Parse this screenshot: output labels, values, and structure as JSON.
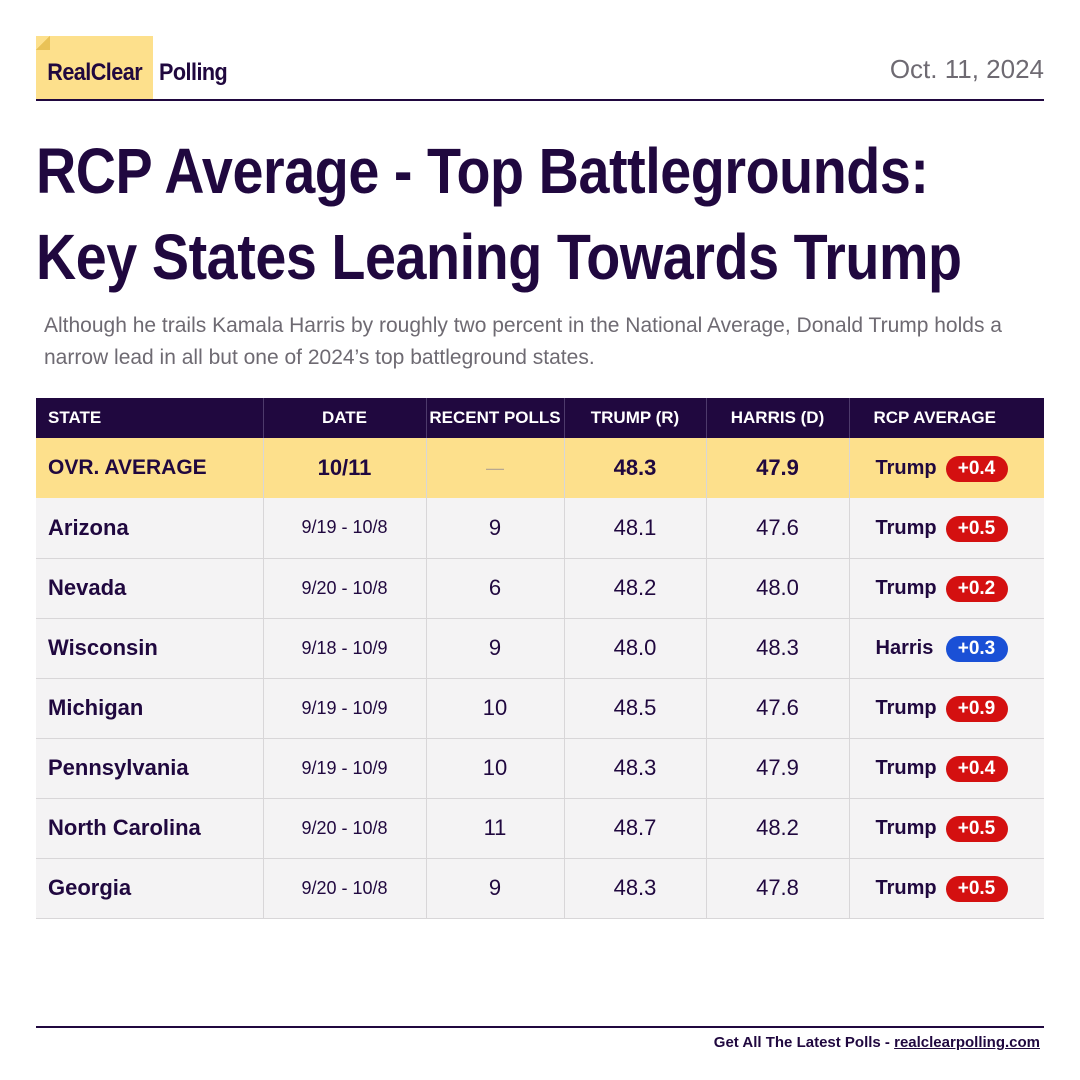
{
  "brand": {
    "real": "RealClear",
    "polling": "Polling",
    "accent": "#fde08c"
  },
  "date": "Oct. 11, 2024",
  "title": {
    "line1": "RCP Average - Top Battlegrounds:",
    "line2": "Key States Leaning Towards Trump"
  },
  "subtitle": "Although he trails Kamala Harris by roughly two percent in the National Average, Donald Trump holds a narrow lead in all but one of 2024’s top battleground states.",
  "table": {
    "headers": [
      "STATE",
      "DATE",
      "RECENT POLLS",
      "TRUMP (R)",
      "HARRIS (D)",
      "RCP AVERAGE"
    ],
    "overall": {
      "state": "OVR. AVERAGE",
      "date": "10/11",
      "polls": "—",
      "trump": "48.3",
      "harris": "47.9",
      "leader": "Trump",
      "spread": "+0.4"
    },
    "rows": [
      {
        "state": "Arizona",
        "date": "9/19 - 10/8",
        "polls": "9",
        "trump": "48.1",
        "harris": "47.6",
        "leader": "Trump",
        "spread": "+0.5",
        "party": "r"
      },
      {
        "state": "Nevada",
        "date": "9/20 - 10/8",
        "polls": "6",
        "trump": "48.2",
        "harris": "48.0",
        "leader": "Trump",
        "spread": "+0.2",
        "party": "r"
      },
      {
        "state": "Wisconsin",
        "date": "9/18 - 10/9",
        "polls": "9",
        "trump": "48.0",
        "harris": "48.3",
        "leader": "Harris",
        "spread": "+0.3",
        "party": "d"
      },
      {
        "state": "Michigan",
        "date": "9/19 - 10/9",
        "polls": "10",
        "trump": "48.5",
        "harris": "47.6",
        "leader": "Trump",
        "spread": "+0.9",
        "party": "r"
      },
      {
        "state": "Pennsylvania",
        "date": "9/19 - 10/9",
        "polls": "10",
        "trump": "48.3",
        "harris": "47.9",
        "leader": "Trump",
        "spread": "+0.4",
        "party": "r"
      },
      {
        "state": "North Carolina",
        "date": "9/20 - 10/8",
        "polls": "11",
        "trump": "48.7",
        "harris": "48.2",
        "leader": "Trump",
        "spread": "+0.5",
        "party": "r"
      },
      {
        "state": "Georgia",
        "date": "9/20 - 10/8",
        "polls": "9",
        "trump": "48.3",
        "harris": "47.8",
        "leader": "Trump",
        "spread": "+0.5",
        "party": "r"
      }
    ]
  },
  "footer": {
    "text": "Get All The Latest Polls",
    "sep": " - ",
    "link": "realclearpolling.com"
  },
  "colors": {
    "navy": "#20083f",
    "republican": "#d41010",
    "democrat": "#1a50d6"
  }
}
